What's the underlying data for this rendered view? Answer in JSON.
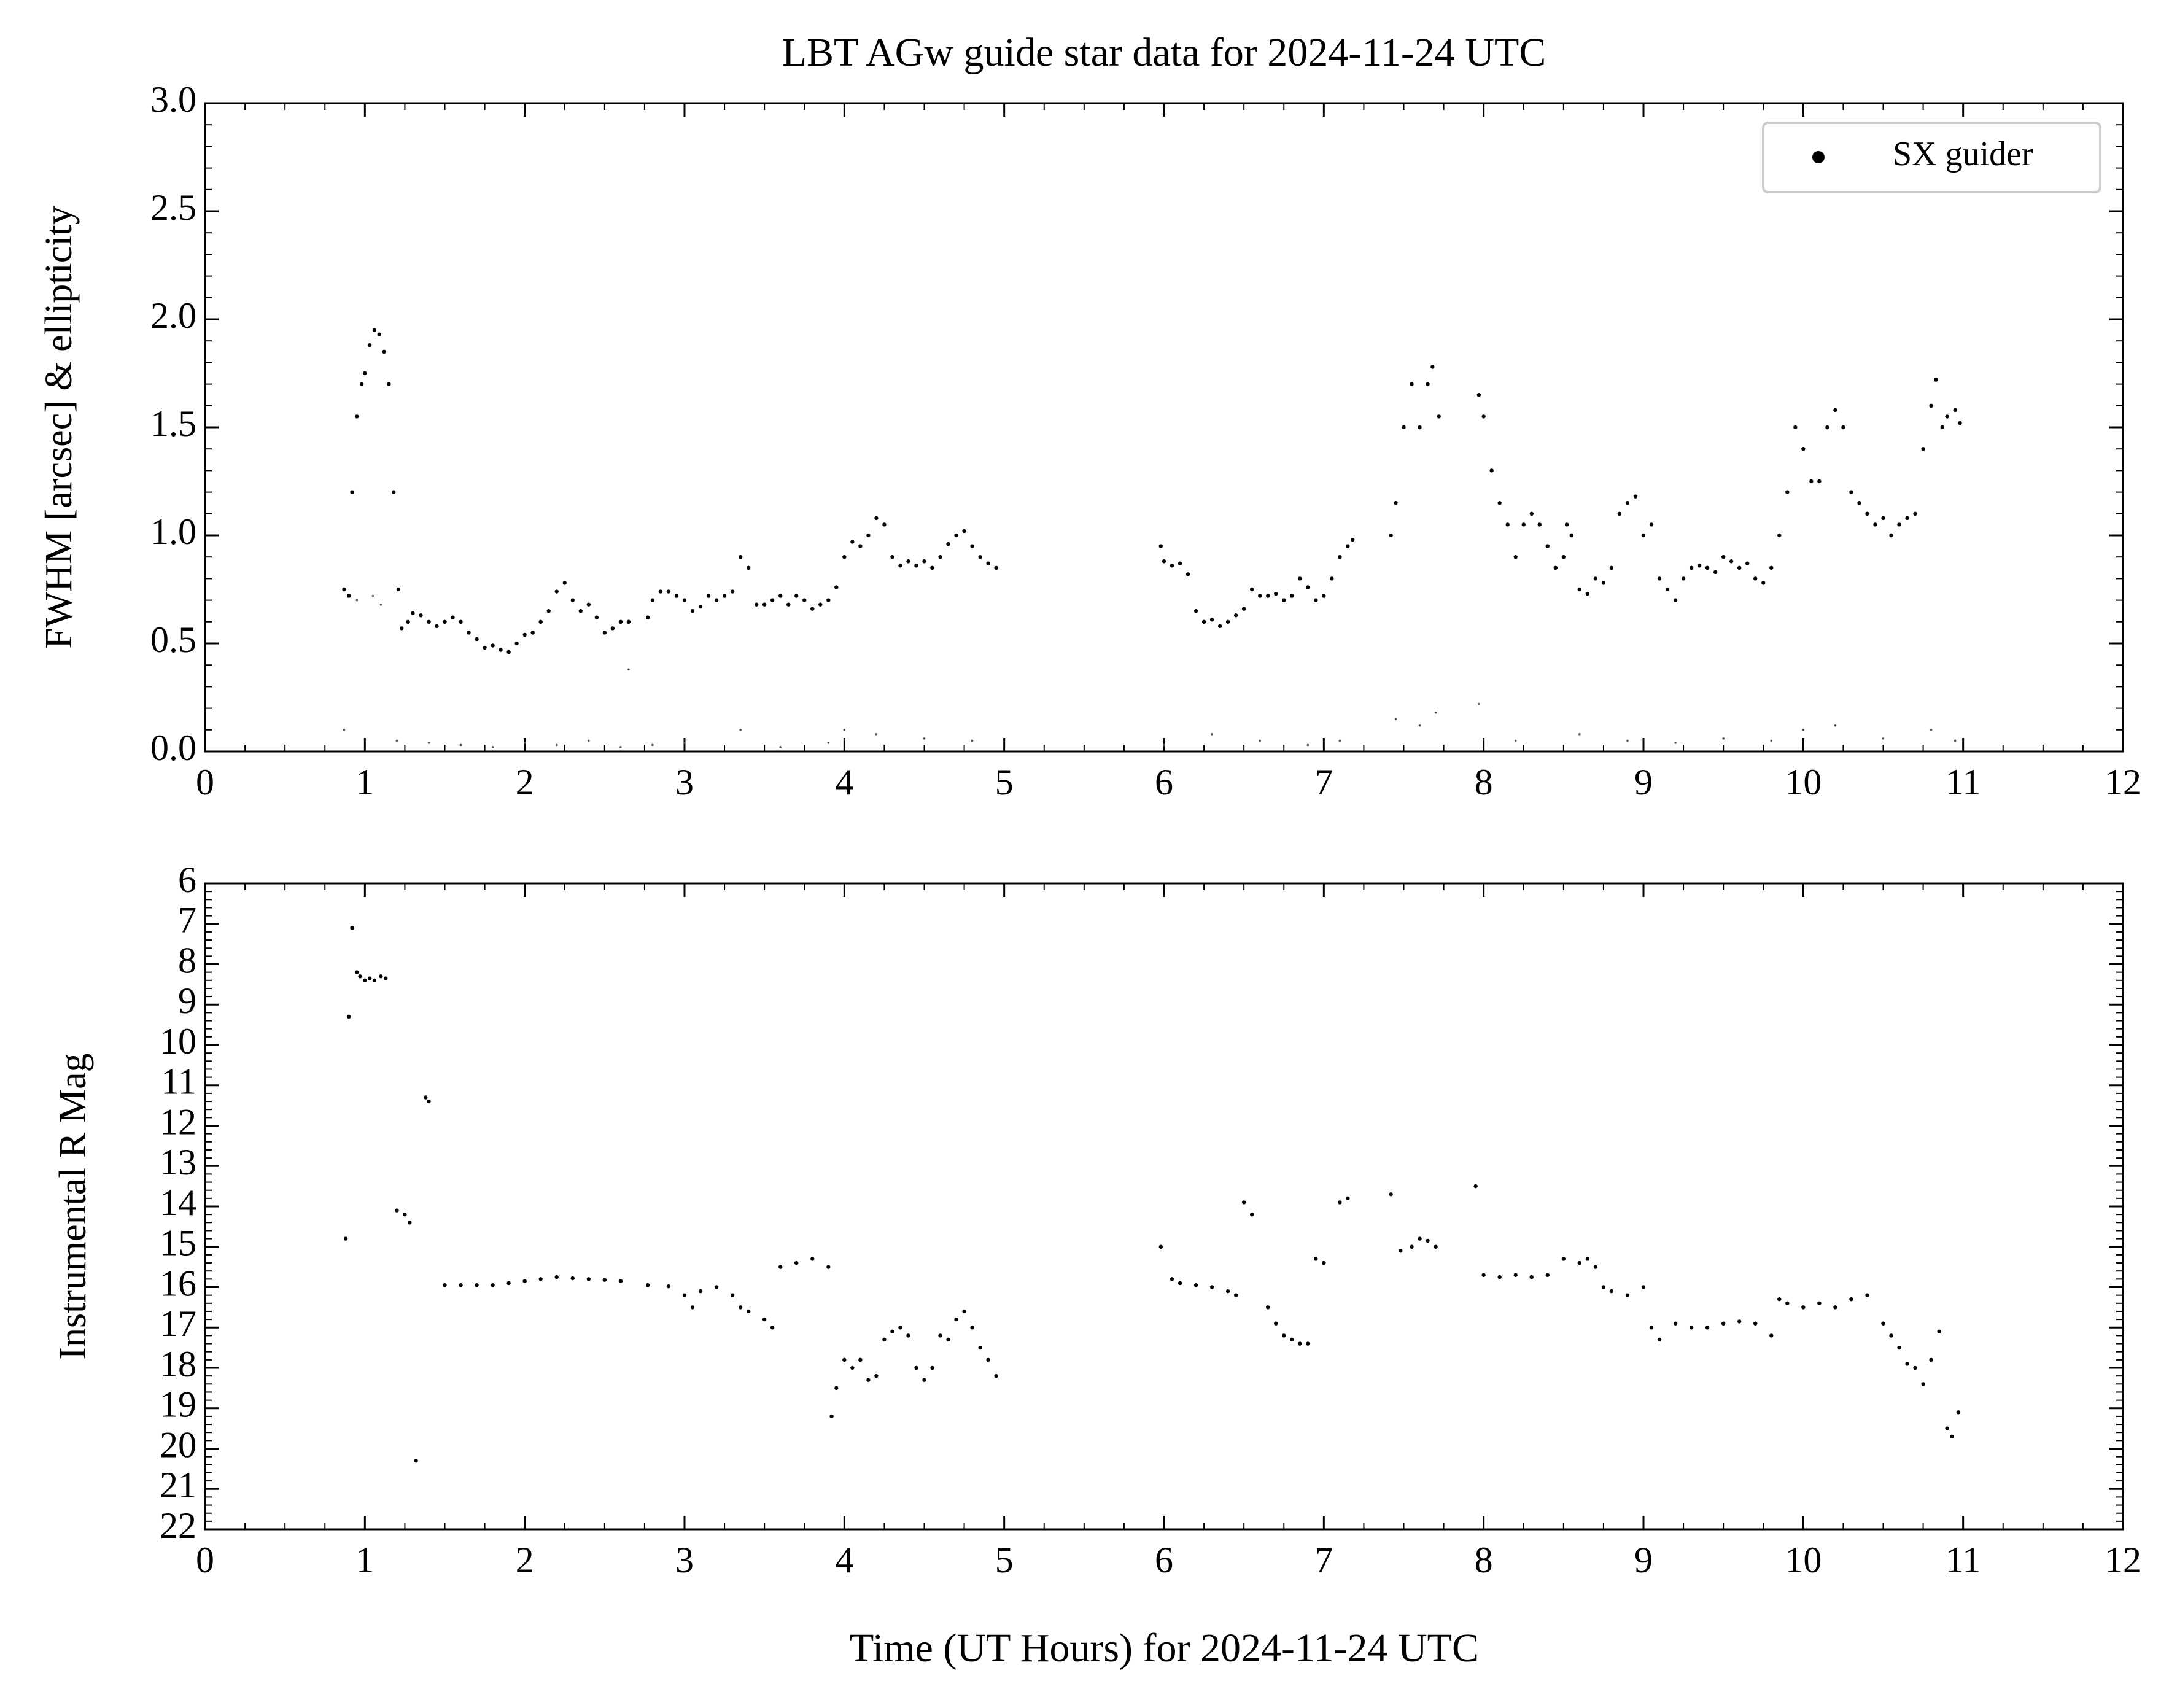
{
  "chart_data": [
    {
      "type": "scatter",
      "title": "LBT AGw guide star data for 2024-11-24 UTC",
      "y_label": "FWHM [arcsec] & ellipticity",
      "xlim": [
        0,
        12
      ],
      "xticks": [
        0,
        1,
        2,
        3,
        4,
        5,
        6,
        7,
        8,
        9,
        10,
        11,
        12
      ],
      "ylim": [
        0,
        3
      ],
      "yticks": [
        {
          "value": 0,
          "label": "0.0"
        },
        0.5,
        {
          "value": 1,
          "label": "1.0"
        },
        1.5,
        {
          "value": 2,
          "label": "2.0"
        },
        2.5,
        {
          "value": 3,
          "label": "3.0"
        }
      ],
      "legend": "upper right",
      "series": [
        {
          "name": "SX guider",
          "color": "#000000",
          "x": [
            0.87,
            0.9,
            0.92,
            0.95,
            0.98,
            1.0,
            1.03,
            1.06,
            1.09,
            1.12,
            1.15,
            1.18,
            1.21,
            1.23,
            1.27,
            1.3,
            1.35,
            1.4,
            1.45,
            1.5,
            1.55,
            1.6,
            1.65,
            1.7,
            1.75,
            1.8,
            1.85,
            1.9,
            1.95,
            2.0,
            2.05,
            2.1,
            2.15,
            2.2,
            2.25,
            2.3,
            2.35,
            2.4,
            2.45,
            2.5,
            2.55,
            2.6,
            2.65,
            2.77,
            2.8,
            2.85,
            2.9,
            2.95,
            3.0,
            3.05,
            3.1,
            3.15,
            3.2,
            3.25,
            3.3,
            3.35,
            3.4,
            3.45,
            3.5,
            3.55,
            3.6,
            3.65,
            3.7,
            3.75,
            3.8,
            3.85,
            3.9,
            3.95,
            4.0,
            4.05,
            4.1,
            4.15,
            4.2,
            4.25,
            4.3,
            4.35,
            4.4,
            4.45,
            4.5,
            4.55,
            4.6,
            4.65,
            4.7,
            4.75,
            4.8,
            4.85,
            4.9,
            4.95,
            5.98,
            6.0,
            6.05,
            6.1,
            6.15,
            6.2,
            6.25,
            6.3,
            6.35,
            6.4,
            6.45,
            6.5,
            6.55,
            6.6,
            6.65,
            6.7,
            6.75,
            6.8,
            6.85,
            6.9,
            6.95,
            7.0,
            7.05,
            7.1,
            7.15,
            7.18,
            7.42,
            7.45,
            7.5,
            7.55,
            7.6,
            7.65,
            7.68,
            7.72,
            7.97,
            8.0,
            8.05,
            8.1,
            8.15,
            8.2,
            8.25,
            8.3,
            8.35,
            8.4,
            8.45,
            8.5,
            8.52,
            8.55,
            8.6,
            8.65,
            8.7,
            8.75,
            8.8,
            8.85,
            8.9,
            8.95,
            9.0,
            9.05,
            9.1,
            9.15,
            9.2,
            9.25,
            9.3,
            9.35,
            9.4,
            9.45,
            9.5,
            9.55,
            9.6,
            9.65,
            9.7,
            9.75,
            9.8,
            9.85,
            9.9,
            9.95,
            10.0,
            10.05,
            10.1,
            10.15,
            10.2,
            10.25,
            10.3,
            10.35,
            10.4,
            10.45,
            10.5,
            10.55,
            10.6,
            10.65,
            10.7,
            10.75,
            10.8,
            10.83,
            10.87,
            10.9,
            10.95,
            10.98
          ],
          "values": [
            0.75,
            0.72,
            1.2,
            1.55,
            1.7,
            1.75,
            1.88,
            1.95,
            1.93,
            1.85,
            1.7,
            1.2,
            0.75,
            0.57,
            0.6,
            0.64,
            0.63,
            0.6,
            0.58,
            0.6,
            0.62,
            0.6,
            0.55,
            0.52,
            0.48,
            0.49,
            0.47,
            0.46,
            0.5,
            0.54,
            0.55,
            0.6,
            0.65,
            0.74,
            0.78,
            0.7,
            0.65,
            0.68,
            0.62,
            0.55,
            0.57,
            0.6,
            0.6,
            0.62,
            0.7,
            0.74,
            0.74,
            0.72,
            0.7,
            0.65,
            0.67,
            0.72,
            0.7,
            0.72,
            0.74,
            0.9,
            0.85,
            0.68,
            0.68,
            0.7,
            0.72,
            0.68,
            0.72,
            0.7,
            0.66,
            0.68,
            0.7,
            0.76,
            0.9,
            0.97,
            0.95,
            1.0,
            1.08,
            1.05,
            0.9,
            0.86,
            0.88,
            0.86,
            0.88,
            0.85,
            0.9,
            0.96,
            1.0,
            1.02,
            0.95,
            0.9,
            0.87,
            0.85,
            0.95,
            0.88,
            0.86,
            0.87,
            0.82,
            0.65,
            0.6,
            0.61,
            0.58,
            0.6,
            0.63,
            0.66,
            0.75,
            0.72,
            0.72,
            0.73,
            0.7,
            0.72,
            0.8,
            0.76,
            0.7,
            0.72,
            0.8,
            0.9,
            0.95,
            0.98,
            1.0,
            1.15,
            1.5,
            1.7,
            1.5,
            1.7,
            1.78,
            1.55,
            1.65,
            1.55,
            1.3,
            1.15,
            1.05,
            0.9,
            1.05,
            1.1,
            1.05,
            0.95,
            0.85,
            0.9,
            1.05,
            1.0,
            0.75,
            0.73,
            0.8,
            0.78,
            0.85,
            1.1,
            1.15,
            1.18,
            1.0,
            1.05,
            0.8,
            0.75,
            0.7,
            0.8,
            0.85,
            0.86,
            0.85,
            0.83,
            0.9,
            0.88,
            0.85,
            0.87,
            0.8,
            0.78,
            0.85,
            1.0,
            1.2,
            1.5,
            1.4,
            1.25,
            1.25,
            1.5,
            1.58,
            1.5,
            1.2,
            1.15,
            1.1,
            1.05,
            1.08,
            1.0,
            1.05,
            1.08,
            1.1,
            1.4,
            1.6,
            1.72,
            1.5,
            1.55,
            1.58,
            1.52
          ]
        },
        {
          "color": "#555555",
          "x": [
            0.87,
            0.95,
            1.05,
            1.1,
            1.2,
            1.4,
            1.6,
            1.8,
            2.0,
            2.2,
            2.4,
            2.6,
            2.65,
            2.8,
            3.0,
            3.35,
            3.6,
            3.9,
            4.0,
            4.2,
            4.5,
            4.8,
            6.0,
            6.3,
            6.6,
            6.9,
            7.1,
            7.45,
            7.6,
            7.7,
            7.97,
            8.2,
            8.6,
            8.9,
            9.2,
            9.5,
            9.8,
            10.0,
            10.2,
            10.5,
            10.8,
            10.95
          ],
          "values": [
            0.1,
            0.7,
            0.72,
            0.68,
            0.05,
            0.04,
            0.03,
            0.02,
            0.04,
            0.03,
            0.05,
            0.02,
            0.38,
            0.03,
            0.04,
            0.1,
            0.02,
            0.04,
            0.1,
            0.08,
            0.06,
            0.05,
            0.03,
            0.08,
            0.05,
            0.03,
            0.05,
            0.15,
            0.12,
            0.18,
            0.22,
            0.05,
            0.08,
            0.05,
            0.04,
            0.06,
            0.05,
            0.1,
            0.12,
            0.06,
            0.1,
            0.05
          ]
        }
      ]
    },
    {
      "type": "scatter",
      "y_label": "Instrumental R Mag",
      "x_label": "Time (UT Hours) for 2024-11-24 UTC",
      "xlim": [
        0,
        12
      ],
      "xticks": [
        0,
        1,
        2,
        3,
        4,
        5,
        6,
        7,
        8,
        9,
        10,
        11,
        12
      ],
      "ylim": [
        22,
        6
      ],
      "yticks": [
        6,
        7,
        8,
        9,
        10,
        11,
        12,
        13,
        14,
        15,
        16,
        17,
        18,
        19,
        20,
        21,
        22
      ],
      "series": [
        {
          "color": "#000000",
          "x": [
            0.88,
            0.9,
            0.92,
            0.95,
            0.97,
            1.0,
            1.03,
            1.06,
            1.1,
            1.13,
            1.2,
            1.25,
            1.28,
            1.32,
            1.38,
            1.4,
            1.5,
            1.6,
            1.7,
            1.8,
            1.9,
            2.0,
            2.1,
            2.2,
            2.3,
            2.4,
            2.5,
            2.6,
            2.77,
            2.9,
            3.0,
            3.05,
            3.1,
            3.2,
            3.3,
            3.35,
            3.4,
            3.5,
            3.55,
            3.6,
            3.7,
            3.8,
            3.9,
            3.92,
            3.95,
            4.0,
            4.05,
            4.1,
            4.15,
            4.2,
            4.25,
            4.3,
            4.35,
            4.4,
            4.45,
            4.5,
            4.55,
            4.6,
            4.65,
            4.7,
            4.75,
            4.8,
            4.85,
            4.9,
            4.95,
            5.98,
            6.05,
            6.1,
            6.2,
            6.3,
            6.4,
            6.45,
            6.5,
            6.55,
            6.65,
            6.7,
            6.75,
            6.8,
            6.85,
            6.9,
            6.95,
            7.0,
            7.1,
            7.15,
            7.42,
            7.48,
            7.55,
            7.6,
            7.65,
            7.7,
            7.95,
            8.0,
            8.1,
            8.2,
            8.3,
            8.4,
            8.5,
            8.6,
            8.65,
            8.7,
            8.75,
            8.8,
            8.9,
            9.0,
            9.05,
            9.1,
            9.2,
            9.3,
            9.4,
            9.5,
            9.6,
            9.7,
            9.8,
            9.85,
            9.9,
            10.0,
            10.1,
            10.2,
            10.3,
            10.4,
            10.5,
            10.55,
            10.6,
            10.65,
            10.7,
            10.75,
            10.8,
            10.85,
            10.9,
            10.93,
            10.97
          ],
          "values": [
            14.8,
            9.3,
            7.1,
            8.2,
            8.3,
            8.4,
            8.35,
            8.4,
            8.3,
            8.35,
            14.1,
            14.2,
            14.4,
            20.3,
            11.3,
            11.4,
            15.95,
            15.95,
            15.95,
            15.95,
            15.9,
            15.85,
            15.8,
            15.75,
            15.78,
            15.8,
            15.82,
            15.85,
            15.95,
            15.98,
            16.2,
            16.5,
            16.1,
            16.0,
            16.2,
            16.5,
            16.6,
            16.8,
            17.0,
            15.5,
            15.4,
            15.3,
            15.5,
            19.2,
            18.5,
            17.8,
            18.0,
            17.8,
            18.3,
            18.2,
            17.3,
            17.1,
            17.0,
            17.2,
            18.0,
            18.3,
            18.0,
            17.2,
            17.3,
            16.8,
            16.6,
            17.0,
            17.5,
            17.8,
            18.2,
            15.0,
            15.8,
            15.9,
            15.95,
            16.0,
            16.1,
            16.2,
            13.9,
            14.2,
            16.5,
            16.9,
            17.2,
            17.3,
            17.4,
            17.4,
            15.3,
            15.4,
            13.9,
            13.8,
            13.7,
            15.1,
            15.0,
            14.8,
            14.85,
            15.0,
            13.5,
            15.7,
            15.75,
            15.7,
            15.75,
            15.7,
            15.3,
            15.4,
            15.3,
            15.5,
            16.0,
            16.1,
            16.2,
            16.0,
            17.0,
            17.3,
            16.9,
            17.0,
            17.0,
            16.9,
            16.85,
            16.9,
            17.2,
            16.3,
            16.4,
            16.5,
            16.4,
            16.5,
            16.3,
            16.2,
            16.9,
            17.2,
            17.5,
            17.9,
            18.0,
            18.4,
            17.8,
            17.1,
            19.5,
            19.7,
            19.1
          ]
        }
      ]
    }
  ]
}
